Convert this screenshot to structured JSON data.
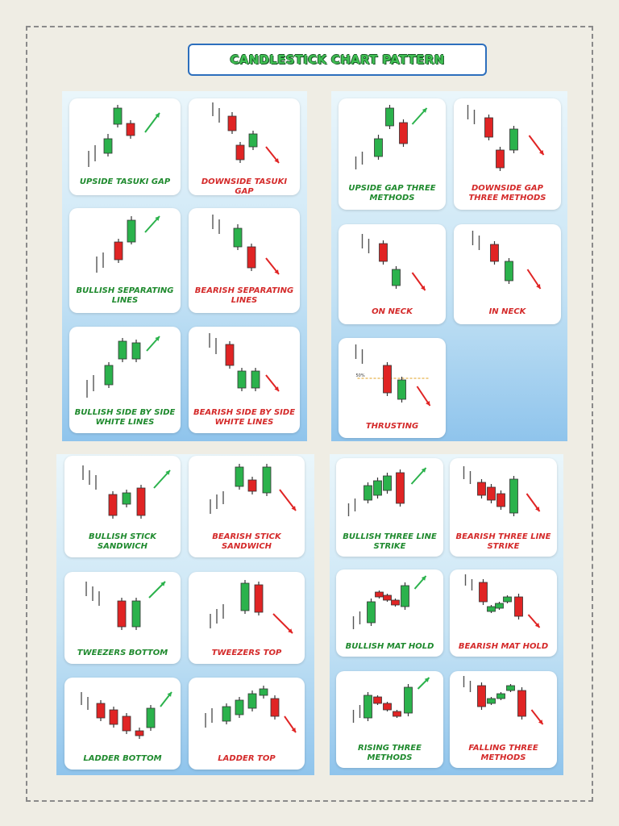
{
  "title": "CANDLESTICK CHART PATTERN",
  "colors": {
    "bull": "#2bb24c",
    "bear": "#e02424",
    "wick": "#333333",
    "arrow_up": "#2bb24c",
    "arrow_down": "#e02424"
  },
  "patterns": [
    {
      "id": "upside-tasuki-gap",
      "label": "UPSIDE TASUKI GAP",
      "tone": "bull"
    },
    {
      "id": "downside-tasuki-gap",
      "label": "DOWNSIDE TASUKI GAP",
      "tone": "bear"
    },
    {
      "id": "bullish-separating-lines",
      "label": "BULLISH SEPARATING LINES",
      "tone": "bull"
    },
    {
      "id": "bearish-separating-lines",
      "label": "BEARISH SEPARATING LINES",
      "tone": "bear"
    },
    {
      "id": "bullish-side-by-side-white-lines",
      "label": "BULLISH SIDE BY SIDE WHITE LINES",
      "tone": "bull"
    },
    {
      "id": "bearish-side-by-side-white-lines",
      "label": "BEARISH SIDE BY SIDE WHITE LINES",
      "tone": "bear"
    },
    {
      "id": "upside-gap-three-methods",
      "label": "UPSIDE GAP THREE METHODS",
      "tone": "bull"
    },
    {
      "id": "downside-gap-three-methods",
      "label": "DOWNSIDE GAP THREE METHODS",
      "tone": "bear"
    },
    {
      "id": "on-neck",
      "label": "ON NECK",
      "tone": "bear"
    },
    {
      "id": "in-neck",
      "label": "IN NECK",
      "tone": "bear"
    },
    {
      "id": "thrusting",
      "label": "THRUSTING",
      "tone": "bear",
      "annotation": "50%"
    },
    {
      "id": "bullish-stick-sandwich",
      "label": "BULLISH STICK SANDWICH",
      "tone": "bull"
    },
    {
      "id": "bearish-stick-sandwich",
      "label": "BEARISH STICK SANDWICH",
      "tone": "bear"
    },
    {
      "id": "tweezers-bottom",
      "label": "TWEEZERS BOTTOM",
      "tone": "bull"
    },
    {
      "id": "tweezers-top",
      "label": "TWEEZERS TOP",
      "tone": "bear"
    },
    {
      "id": "ladder-bottom",
      "label": "LADDER BOTTOM",
      "tone": "bull"
    },
    {
      "id": "ladder-top",
      "label": "LADDER TOP",
      "tone": "bear"
    },
    {
      "id": "bullish-three-line-strike",
      "label": "BULLISH THREE LINE STRIKE",
      "tone": "bull"
    },
    {
      "id": "bearish-three-line-strike",
      "label": "BEARISH THREE LINE STRIKE",
      "tone": "bear"
    },
    {
      "id": "bullish-mat-hold",
      "label": "BULLISH MAT HOLD",
      "tone": "bull"
    },
    {
      "id": "bearish-mat-hold",
      "label": "BEARISH MAT HOLD",
      "tone": "bear"
    },
    {
      "id": "rising-three-methods",
      "label": "RISING THREE METHODS",
      "tone": "bull"
    },
    {
      "id": "falling-three-methods",
      "label": "FALLING THREE METHODS",
      "tone": "bear"
    }
  ]
}
